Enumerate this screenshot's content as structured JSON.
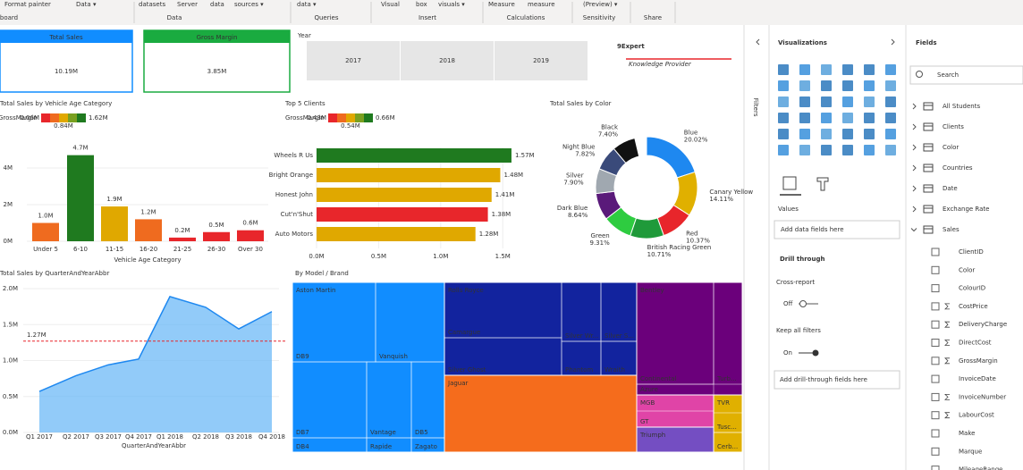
{
  "ribbon": {
    "items": [
      "Format painter",
      "Data ▾",
      "datasets",
      "Server",
      "data",
      "sources ▾",
      "data ▾",
      "Visual",
      "box",
      "visuals ▾",
      "Measure",
      "measure",
      "(Preview) ▾"
    ],
    "groups": [
      "board",
      "Data",
      "Queries",
      "Insert",
      "Calculations",
      "Sensitivity",
      "Share"
    ]
  },
  "cards": [
    {
      "label": "Total Sales",
      "value": "10.19M"
    },
    {
      "label": "Gross Margin",
      "value": "3.85M"
    }
  ],
  "slicer": {
    "title": "Year",
    "items": [
      "2017",
      "2018",
      "2019"
    ]
  },
  "logo": {
    "name": "9Expert",
    "tagline": "Knowledge Provider"
  },
  "chart_data": [
    {
      "type": "bar",
      "title": "Total Sales by Vehicle Age Category",
      "legend": {
        "title": "GrossMargin",
        "min": "0.06M",
        "max": "1.62M",
        "mid": "0.84M"
      },
      "x_label": "Vehicle Age Category",
      "categories": [
        "Under 5",
        "6-10",
        "11-15",
        "16-20",
        "21-25",
        "26-30",
        "Over 30"
      ],
      "values": [
        1000000,
        4700000,
        1900000,
        1200000,
        200000,
        500000,
        600000
      ],
      "value_labels": [
        "1.0M",
        "4.7M",
        "1.9M",
        "1.2M",
        "0.2M",
        "0.5M",
        "0.6M"
      ],
      "colors": [
        "#ef6b1f",
        "#1f7a1f",
        "#e0a800",
        "#ef6b1f",
        "#e8262b",
        "#e8262b",
        "#e8262b"
      ],
      "ylim": [
        0,
        5000000
      ],
      "yticks": [
        {
          "value": 0,
          "label": "0M"
        },
        {
          "value": 2000000,
          "label": "2M"
        },
        {
          "value": 4000000,
          "label": "4M"
        }
      ]
    },
    {
      "type": "hbar",
      "title": "Top 5 Clients",
      "legend": {
        "title": "GrossMargin",
        "min": "0.43M",
        "max": "0.66M",
        "mid": "0.54M"
      },
      "categories": [
        "Wheels R Us",
        "Bright Orange",
        "Honest John",
        "Cut'n'Shut",
        "Auto Motors"
      ],
      "values": [
        1570000,
        1480000,
        1410000,
        1380000,
        1280000
      ],
      "value_labels": [
        "1.57M",
        "1.48M",
        "1.41M",
        "1.38M",
        "1.28M"
      ],
      "colors": [
        "#1f7a1f",
        "#e0a800",
        "#e0a800",
        "#e8262b",
        "#e0a800"
      ],
      "xlim": [
        0,
        1700000
      ],
      "xticks": [
        {
          "value": 0,
          "label": "0.0M"
        },
        {
          "value": 500000,
          "label": "0.5M"
        },
        {
          "value": 1000000,
          "label": "1.0M"
        },
        {
          "value": 1500000,
          "label": "1.5M"
        }
      ]
    },
    {
      "type": "donut",
      "title": "Total Sales by Color",
      "categories": [
        "Blue",
        "Canary Yellow",
        "Red",
        "British Racing Green",
        "Green",
        "Dark Blue",
        "Silver",
        "Night Blue",
        "Black"
      ],
      "values": [
        20.02,
        14.11,
        10.37,
        10.71,
        9.31,
        8.64,
        7.9,
        7.82,
        7.4
      ],
      "value_labels": [
        "20.02%",
        "14.11%",
        "10.37%",
        "10.71%",
        "9.31%",
        "8.64%",
        "7.90%",
        "7.82%",
        "7.40%"
      ],
      "colors": [
        "#1e88f0",
        "#e0b000",
        "#e8262b",
        "#1f9a3a",
        "#2ecc40",
        "#5a1a7a",
        "#a0a8b0",
        "#3a4a7a",
        "#111111"
      ]
    },
    {
      "type": "area",
      "title": "Total Sales by QuarterAndYearAbbr",
      "x_label": "QuarterAndYearAbbr",
      "categories": [
        "Q1 2017",
        "Q2 2017",
        "Q3 2017",
        "Q4 2017",
        "Q1 2018",
        "Q2 2018",
        "Q3 2018",
        "Q4 2018"
      ],
      "values": [
        570000,
        790000,
        940000,
        1020000,
        1890000,
        1740000,
        1440000,
        1680000
      ],
      "color": "#64b5f6",
      "reference": {
        "value": 1270000,
        "label": "1.27M"
      },
      "ylim": [
        0,
        2000000
      ],
      "yticks": [
        {
          "value": 0,
          "label": "0.0M"
        },
        {
          "value": 500000,
          "label": "0.5M"
        },
        {
          "value": 1000000,
          "label": "1.0M"
        },
        {
          "value": 1500000,
          "label": "1.5M"
        },
        {
          "value": 2000000,
          "label": "2.0M"
        }
      ]
    }
  ],
  "treemap": {
    "title": "By Model / Brand",
    "groups": [
      {
        "name": "Aston Martin",
        "items": [
          "DB9",
          "Vanquish",
          "DB7",
          "Vantage",
          "DB5",
          "DB4",
          "Rapide",
          "Zagato"
        ]
      },
      {
        "name": "Rolls Royce",
        "items": [
          "Camargue",
          "Silver Wr...",
          "Silver S...",
          "Silver Ghost",
          "Phantom",
          "Wraith"
        ]
      },
      {
        "name": "Jaguar",
        "items": []
      },
      {
        "name": "Bentley",
        "items": [
          "Continental",
          "Turb...",
          "Azure"
        ]
      },
      {
        "name": "MGB",
        "items": [
          "GT"
        ]
      },
      {
        "name": "Triumph",
        "items": []
      },
      {
        "name": "TVR",
        "items": [
          "Tusc...",
          "Cerb..."
        ]
      }
    ]
  },
  "filters": {
    "title": "Filters"
  },
  "visualizations": {
    "title": "Visualizations",
    "values_label": "Values",
    "values_placeholder": "Add data fields here",
    "drill_title": "Drill through",
    "cross_report": "Cross-report",
    "cross_state": "Off",
    "keep_filters": "Keep all filters",
    "keep_state": "On",
    "drill_placeholder": "Add drill-through fields here"
  },
  "fields": {
    "title": "Fields",
    "search": "Search",
    "tables": [
      "All Students",
      "Clients",
      "Color",
      "Countries",
      "Date",
      "Exchange Rate",
      "Sales"
    ],
    "sales_fields": [
      {
        "name": "ClientID",
        "sum": false
      },
      {
        "name": "Color",
        "sum": false
      },
      {
        "name": "ColourID",
        "sum": false
      },
      {
        "name": "CostPrice",
        "sum": true
      },
      {
        "name": "DeliveryCharge",
        "sum": true
      },
      {
        "name": "DirectCost",
        "sum": true
      },
      {
        "name": "GrossMargin",
        "sum": true
      },
      {
        "name": "InvoiceDate",
        "sum": false
      },
      {
        "name": "InvoiceNumber",
        "sum": true
      },
      {
        "name": "LabourCost",
        "sum": true
      },
      {
        "name": "Make",
        "sum": false
      },
      {
        "name": "Marque",
        "sum": false
      },
      {
        "name": "MileageRange",
        "sum": false
      }
    ]
  }
}
